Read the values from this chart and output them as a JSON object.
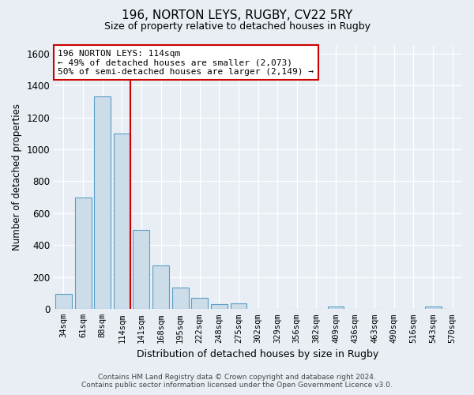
{
  "title": "196, NORTON LEYS, RUGBY, CV22 5RY",
  "subtitle": "Size of property relative to detached houses in Rugby",
  "xlabel": "Distribution of detached houses by size in Rugby",
  "ylabel": "Number of detached properties",
  "footer_line1": "Contains HM Land Registry data © Crown copyright and database right 2024.",
  "footer_line2": "Contains public sector information licensed under the Open Government Licence v3.0.",
  "categories": [
    "34sqm",
    "61sqm",
    "88sqm",
    "114sqm",
    "141sqm",
    "168sqm",
    "195sqm",
    "222sqm",
    "248sqm",
    "275sqm",
    "302sqm",
    "329sqm",
    "356sqm",
    "382sqm",
    "409sqm",
    "436sqm",
    "463sqm",
    "490sqm",
    "516sqm",
    "543sqm",
    "570sqm"
  ],
  "values": [
    97,
    700,
    1330,
    1100,
    495,
    275,
    135,
    70,
    32,
    35,
    0,
    0,
    0,
    0,
    14,
    0,
    0,
    0,
    0,
    14,
    0
  ],
  "bar_color": "#ccdce8",
  "bar_edge_color": "#5a9ec8",
  "vline_x_index": 3,
  "vline_color": "#cc0000",
  "annotation_line1": "196 NORTON LEYS: 114sqm",
  "annotation_line2": "← 49% of detached houses are smaller (2,073)",
  "annotation_line3": "50% of semi-detached houses are larger (2,149) →",
  "annotation_box_color": "#ffffff",
  "annotation_box_edge_color": "#cc0000",
  "ylim": [
    0,
    1650
  ],
  "yticks": [
    0,
    200,
    400,
    600,
    800,
    1000,
    1200,
    1400,
    1600
  ],
  "background_color": "#e8eef4",
  "plot_background": "#e8eef4",
  "title_fontsize": 11,
  "subtitle_fontsize": 9
}
